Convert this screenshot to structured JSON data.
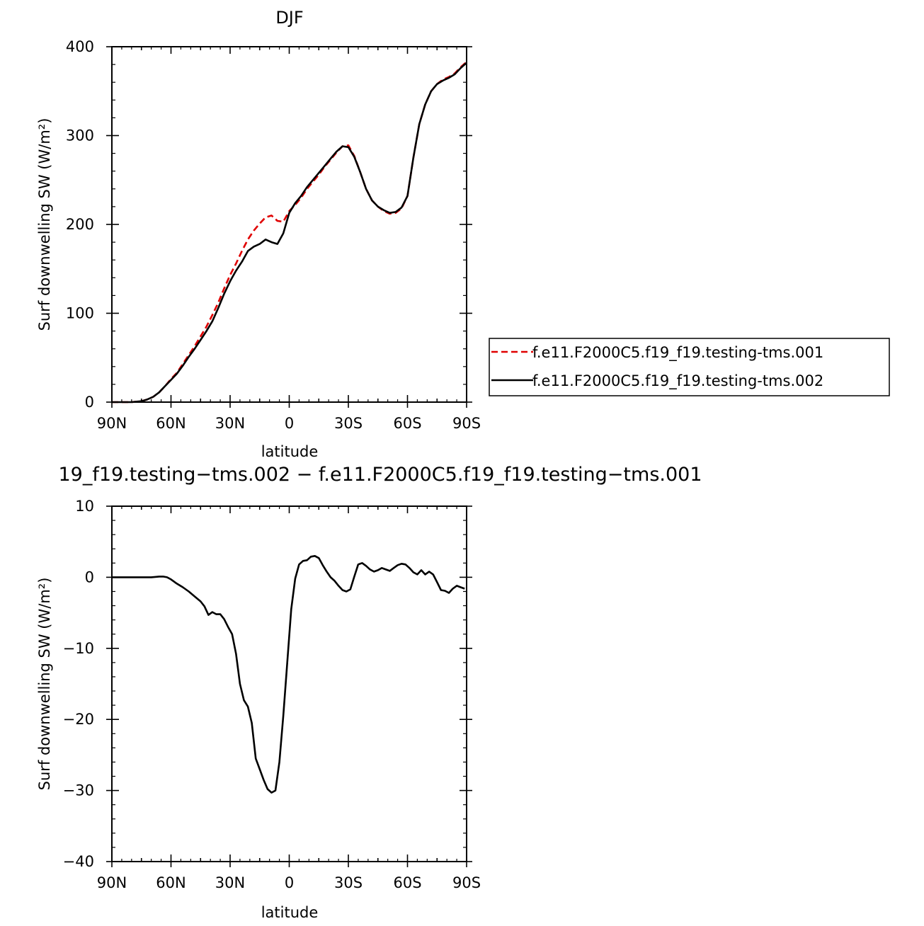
{
  "chart_data": [
    {
      "type": "line",
      "title": "DJF",
      "xlabel": "latitude",
      "ylabel": "Surf downwelling SW (W/m²)",
      "xlim": [
        -90,
        90
      ],
      "ylim": [
        0,
        400
      ],
      "xticks": [
        -90,
        -60,
        -30,
        0,
        30,
        60,
        90
      ],
      "xtick_labels": [
        "90N",
        "60N",
        "30N",
        "0",
        "30S",
        "60S",
        "90S"
      ],
      "yticks": [
        0,
        100,
        200,
        300,
        400
      ],
      "ytick_labels": [
        "0",
        "100",
        "200",
        "300",
        "400"
      ],
      "legend_position": "outside-right",
      "x": [
        -90,
        -85,
        -80,
        -75,
        -72,
        -69,
        -66,
        -63,
        -60,
        -57,
        -54,
        -51,
        -48,
        -45,
        -42,
        -39,
        -36,
        -33,
        -30,
        -27,
        -24,
        -21,
        -18,
        -15,
        -12,
        -9,
        -6,
        -3,
        0,
        3,
        6,
        9,
        12,
        15,
        18,
        21,
        24,
        27,
        30,
        33,
        36,
        39,
        42,
        45,
        48,
        51,
        54,
        57,
        60,
        63,
        66,
        69,
        72,
        75,
        78,
        81,
        84,
        87,
        90
      ],
      "series": [
        {
          "name": "f.e11.F2000C5.f19_f19.testing-tms.001",
          "color": "#e00000",
          "dash": "dashed",
          "values": [
            0,
            0,
            0,
            1,
            3,
            6,
            11,
            18,
            26,
            33,
            43,
            53,
            63,
            74,
            85,
            98,
            112,
            128,
            143,
            156,
            170,
            183,
            193,
            201,
            208,
            210,
            204,
            203,
            215,
            222,
            230,
            240,
            248,
            256,
            265,
            273,
            281,
            288,
            289,
            277,
            259,
            240,
            227,
            220,
            215,
            212,
            213,
            218,
            232,
            275,
            313,
            335,
            350,
            358,
            363,
            366,
            370,
            377,
            383
          ]
        },
        {
          "name": "f.e11.F2000C5.f19_f19.testing-tms.002",
          "color": "#000000",
          "dash": "solid",
          "values": [
            0,
            0,
            0,
            1,
            3,
            6,
            11,
            18,
            25,
            32,
            41,
            51,
            60,
            70,
            80,
            91,
            106,
            122,
            136,
            148,
            158,
            170,
            175,
            178,
            183,
            180,
            178,
            190,
            213,
            224,
            232,
            242,
            250,
            258,
            266,
            274,
            282,
            288,
            287,
            276,
            259,
            240,
            227,
            220,
            216,
            213,
            214,
            219,
            232,
            275,
            313,
            335,
            350,
            358,
            362,
            365,
            369,
            376,
            382
          ]
        }
      ]
    },
    {
      "type": "line",
      "title": "19_f19.testing−tms.002 − f.e11.F2000C5.f19_f19.testing−tms.001",
      "xlabel": "latitude",
      "ylabel": "Surf downwelling SW (W/m²)",
      "xlim": [
        -90,
        90
      ],
      "ylim": [
        -40,
        10
      ],
      "xticks": [
        -90,
        -60,
        -30,
        0,
        30,
        60,
        90
      ],
      "xtick_labels": [
        "90N",
        "60N",
        "30N",
        "0",
        "30S",
        "60S",
        "90S"
      ],
      "yticks": [
        -40,
        -30,
        -20,
        -10,
        0,
        10
      ],
      "ytick_labels": [
        "−40",
        "−30",
        "−20",
        "−10",
        "0",
        "10"
      ],
      "x": [
        -90,
        -80,
        -70,
        -66,
        -64,
        -62,
        -60,
        -57,
        -54,
        -51,
        -48,
        -45,
        -43,
        -41,
        -39,
        -37,
        -35,
        -33,
        -31,
        -29,
        -27,
        -25,
        -23,
        -21,
        -19,
        -17,
        -15,
        -13,
        -11,
        -9,
        -7,
        -5,
        -3,
        -1,
        1,
        3,
        5,
        7,
        9,
        11,
        13,
        15,
        17,
        19,
        21,
        23,
        25,
        27,
        29,
        31,
        33,
        35,
        37,
        39,
        41,
        43,
        45,
        47,
        49,
        51,
        53,
        55,
        57,
        59,
        61,
        63,
        65,
        67,
        69,
        71,
        73,
        75,
        77,
        79,
        81,
        83,
        85,
        87,
        89
      ],
      "series": [
        {
          "name": "",
          "color": "#000000",
          "dash": "solid",
          "values": [
            0,
            0,
            0,
            0.1,
            0.1,
            0,
            -0.3,
            -0.9,
            -1.4,
            -2.0,
            -2.7,
            -3.4,
            -4.1,
            -5.3,
            -4.9,
            -5.2,
            -5.2,
            -5.9,
            -7.0,
            -8.0,
            -10.8,
            -15.0,
            -17.3,
            -18.2,
            -20.5,
            -25.5,
            -27.0,
            -28.5,
            -29.8,
            -30.3,
            -30.0,
            -26.0,
            -19.5,
            -12.0,
            -4.5,
            -0.2,
            1.8,
            2.3,
            2.4,
            2.9,
            3.0,
            2.7,
            1.7,
            0.8,
            0,
            -0.5,
            -1.2,
            -1.8,
            -2.0,
            -1.7,
            0.1,
            1.8,
            2.0,
            1.6,
            1.1,
            0.8,
            1.0,
            1.3,
            1.1,
            0.9,
            1.3,
            1.7,
            1.9,
            1.8,
            1.3,
            0.7,
            0.4,
            1.0,
            0.4,
            0.8,
            0.4,
            -0.7,
            -1.8,
            -1.9,
            -2.2,
            -1.6,
            -1.2,
            -1.4,
            -1.6
          ]
        }
      ]
    }
  ]
}
